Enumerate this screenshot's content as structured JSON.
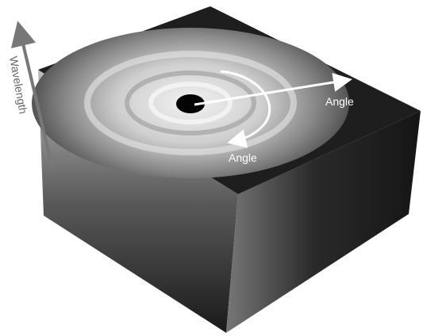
{
  "labels": {
    "wavelength": "Wavelength",
    "angle_radial": "Angle",
    "angle_azimuthal": "Angle"
  }
}
